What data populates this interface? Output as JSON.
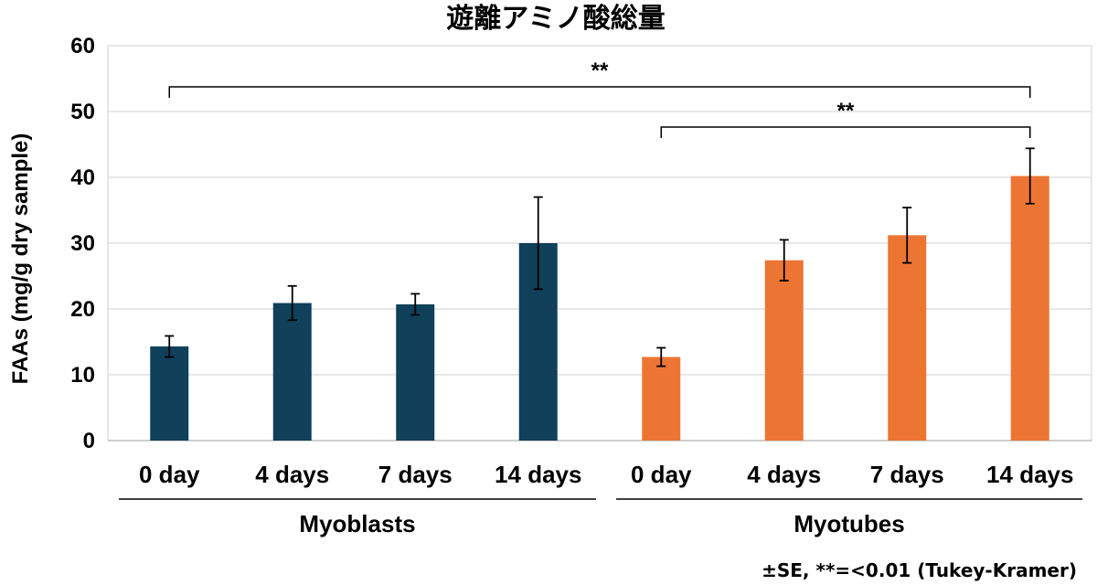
{
  "chart_data": {
    "type": "bar",
    "title": "遊離アミノ酸総量",
    "ylabel": "FAAs  (mg/g dry sample)",
    "xlabel": "",
    "ylim": [
      0,
      60
    ],
    "yticks": [
      0,
      10,
      20,
      30,
      40,
      50,
      60
    ],
    "grid": true,
    "groups": [
      {
        "name": "Myoblasts",
        "color": "#10405a",
        "categories": [
          "0 day",
          "4 days",
          "7 days",
          "14 days"
        ],
        "values": [
          14.3,
          20.9,
          20.7,
          30.0
        ],
        "errors": [
          1.6,
          2.6,
          1.6,
          7.0
        ]
      },
      {
        "name": "Myotubes",
        "color": "#ed7534",
        "categories": [
          "0 day",
          "4 days",
          "7 days",
          "14 days"
        ],
        "values": [
          12.7,
          27.4,
          31.2,
          40.2
        ],
        "errors": [
          1.4,
          3.1,
          4.2,
          4.2
        ]
      }
    ],
    "significance": [
      {
        "label": "**",
        "from": "Myoblasts 0 day",
        "to": "Myotubes 14 days"
      },
      {
        "label": "**",
        "from": "Myotubes 0 day",
        "to": "Myotubes 14 days"
      }
    ],
    "footnote": "±SE, **=<0.01 (Tukey-Kramer)"
  }
}
